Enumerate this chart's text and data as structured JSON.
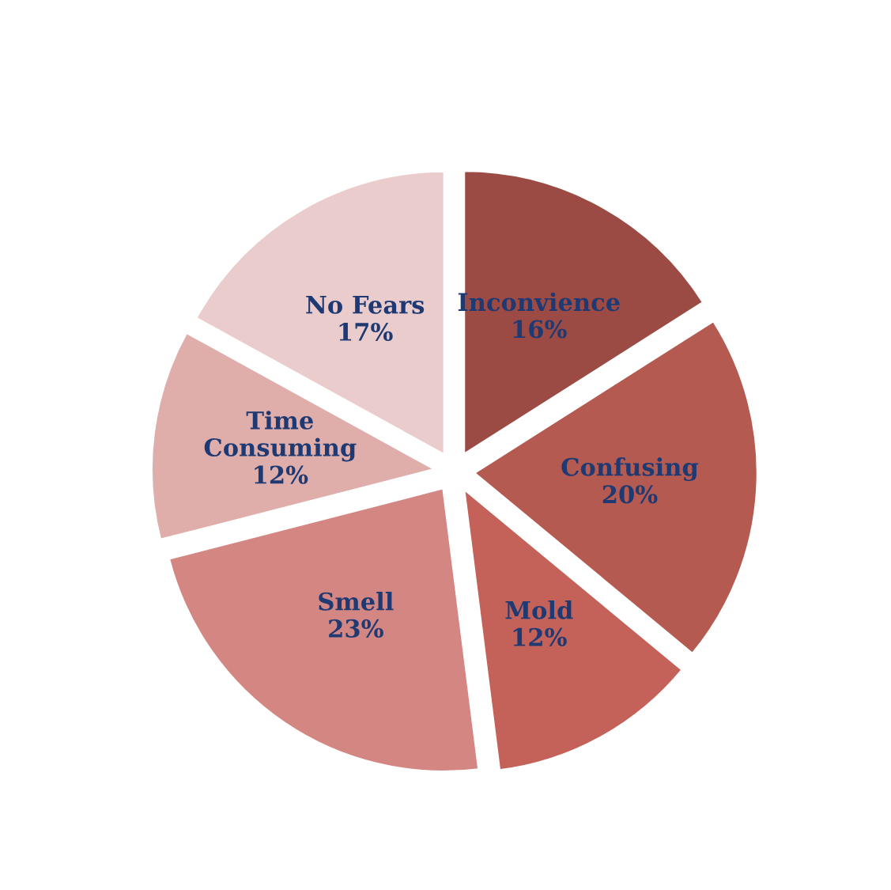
{
  "chart_data": {
    "type": "pie",
    "categories": [
      "Inconvience",
      "Confusing",
      "Mold",
      "Smell",
      "Time Consuming",
      "No Fears"
    ],
    "values": [
      16,
      20,
      12,
      23,
      12,
      17
    ],
    "colors": [
      "#9c4a44",
      "#b45a50",
      "#c4625a",
      "#d48682",
      "#dfaeab",
      "#e9cccb"
    ],
    "value_labels": [
      "16%",
      "20%",
      "12%",
      "23%",
      "12%",
      "17%"
    ],
    "legend": false
  }
}
